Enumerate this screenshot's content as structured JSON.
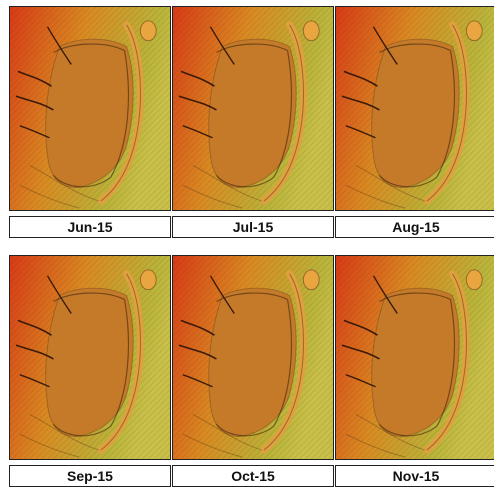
{
  "panels": [
    {
      "label": "Jun-15"
    },
    {
      "label": "Jul-15"
    },
    {
      "label": "Aug-15"
    },
    {
      "label": "Sep-15"
    },
    {
      "label": "Oct-15"
    },
    {
      "label": "Nov-15"
    }
  ],
  "colors": {
    "terrain_high": "#d83a16",
    "terrain_mid": "#d98a22",
    "terrain_low": "#b9b43a",
    "pit_floor": "#c57a2a",
    "label_bg": "#ffffff",
    "label_text": "#111111"
  }
}
